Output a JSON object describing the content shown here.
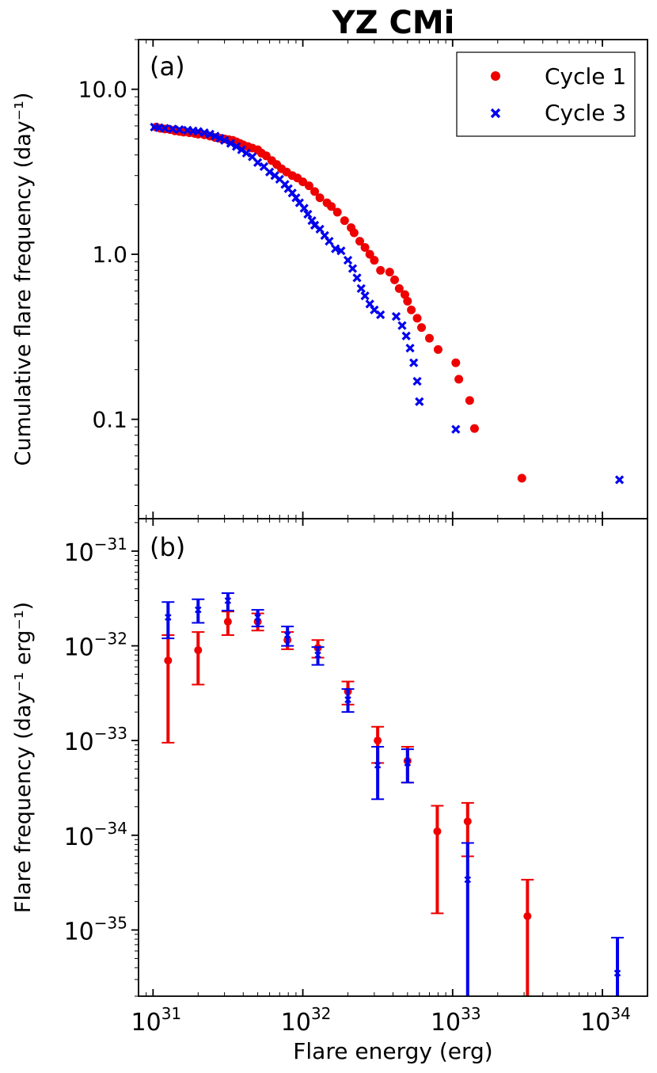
{
  "figure_title": "YZ CMi",
  "colors": {
    "cycle1": "#ee0000",
    "cycle3": "#0000ee",
    "axes": "#000000"
  },
  "chart_data": [
    {
      "panel_label": "(a)",
      "type": "scatter",
      "xscale": "log",
      "yscale": "log",
      "xlim": [
        8e+30,
        2e+34
      ],
      "ylim": [
        0.025,
        20
      ],
      "ytick_values": [
        0.1,
        1.0,
        10.0
      ],
      "ytick_labels": [
        "0.1",
        "1.0",
        "10.0"
      ],
      "ylabel": "Cumulative flare frequency (day⁻¹)",
      "legend": {
        "position": "top-right",
        "entries": [
          "Cycle 1",
          "Cycle 3"
        ]
      },
      "series": [
        {
          "name": "Cycle 1",
          "marker": "circle",
          "color": "#ee0000",
          "points": [
            [
              1.05e+31,
              5.9
            ],
            [
              1.12e+31,
              5.8
            ],
            [
              1.2e+31,
              5.75
            ],
            [
              1.3e+31,
              5.7
            ],
            [
              1.4e+31,
              5.6
            ],
            [
              1.5e+31,
              5.55
            ],
            [
              1.6e+31,
              5.5
            ],
            [
              1.75e+31,
              5.45
            ],
            [
              1.9e+31,
              5.4
            ],
            [
              2e+31,
              5.35
            ],
            [
              2.2e+31,
              5.3
            ],
            [
              2.4e+31,
              5.2
            ],
            [
              2.6e+31,
              5.1
            ],
            [
              2.8e+31,
              5.05
            ],
            [
              3e+31,
              5.0
            ],
            [
              3.2e+31,
              4.95
            ],
            [
              3.4e+31,
              4.9
            ],
            [
              3.6e+31,
              4.8
            ],
            [
              3.8e+31,
              4.7
            ],
            [
              4e+31,
              4.6
            ],
            [
              4.3e+31,
              4.5
            ],
            [
              4.6e+31,
              4.4
            ],
            [
              5e+31,
              4.3
            ],
            [
              5.3e+31,
              4.1
            ],
            [
              5.7e+31,
              3.95
            ],
            [
              6.2e+31,
              3.7
            ],
            [
              6.7e+31,
              3.5
            ],
            [
              7.2e+31,
              3.3
            ],
            [
              7.8e+31,
              3.15
            ],
            [
              8.5e+31,
              3.0
            ],
            [
              9.2e+31,
              2.9
            ],
            [
              1e+32,
              2.75
            ],
            [
              1.1e+32,
              2.6
            ],
            [
              1.2e+32,
              2.4
            ],
            [
              1.3e+32,
              2.2
            ],
            [
              1.45e+32,
              2.05
            ],
            [
              1.55e+32,
              1.95
            ],
            [
              1.7e+32,
              1.8
            ],
            [
              1.9e+32,
              1.6
            ],
            [
              2.1e+32,
              1.45
            ],
            [
              2.2e+32,
              1.35
            ],
            [
              2.4e+32,
              1.2
            ],
            [
              2.6e+32,
              1.1
            ],
            [
              2.8e+32,
              1.0
            ],
            [
              3e+32,
              0.92
            ],
            [
              3.3e+32,
              0.8
            ],
            [
              3.8e+32,
              0.78
            ],
            [
              4.1e+32,
              0.7
            ],
            [
              4.4e+32,
              0.62
            ],
            [
              4.8e+32,
              0.57
            ],
            [
              5e+32,
              0.52
            ],
            [
              5.3e+32,
              0.46
            ],
            [
              5.8e+32,
              0.41
            ],
            [
              6.2e+32,
              0.36
            ],
            [
              7e+32,
              0.31
            ],
            [
              8e+32,
              0.265
            ],
            [
              1.05e+33,
              0.22
            ],
            [
              1.1e+33,
              0.175
            ],
            [
              1.3e+33,
              0.13
            ],
            [
              1.4e+33,
              0.088
            ],
            [
              2.9e+33,
              0.044
            ]
          ]
        },
        {
          "name": "Cycle 3",
          "marker": "x",
          "color": "#0000ee",
          "points": [
            [
              1.02e+31,
              5.9
            ],
            [
              1.1e+31,
              5.85
            ],
            [
              1.2e+31,
              5.8
            ],
            [
              1.35e+31,
              5.75
            ],
            [
              1.5e+31,
              5.7
            ],
            [
              1.7e+31,
              5.65
            ],
            [
              1.85e+31,
              5.6
            ],
            [
              2e+31,
              5.55
            ],
            [
              2.2e+31,
              5.45
            ],
            [
              2.4e+31,
              5.35
            ],
            [
              2.6e+31,
              5.2
            ],
            [
              2.8e+31,
              5.05
            ],
            [
              3e+31,
              4.9
            ],
            [
              3.3e+31,
              4.7
            ],
            [
              3.6e+31,
              4.5
            ],
            [
              3.9e+31,
              4.3
            ],
            [
              4.2e+31,
              4.1
            ],
            [
              4.6e+31,
              3.9
            ],
            [
              5e+31,
              3.6
            ],
            [
              5.5e+31,
              3.4
            ],
            [
              6e+31,
              3.15
            ],
            [
              6.5e+31,
              3.0
            ],
            [
              7e+31,
              2.85
            ],
            [
              7.6e+31,
              2.65
            ],
            [
              8e+31,
              2.5
            ],
            [
              8.5e+31,
              2.35
            ],
            [
              9e+31,
              2.2
            ],
            [
              9.5e+31,
              2.05
            ],
            [
              1.02e+32,
              1.9
            ],
            [
              1.08e+32,
              1.75
            ],
            [
              1.15e+32,
              1.6
            ],
            [
              1.2e+32,
              1.5
            ],
            [
              1.3e+32,
              1.42
            ],
            [
              1.4e+32,
              1.3
            ],
            [
              1.5e+32,
              1.2
            ],
            [
              1.65e+32,
              1.08
            ],
            [
              1.8e+32,
              1.05
            ],
            [
              2e+32,
              0.92
            ],
            [
              2.15e+32,
              0.82
            ],
            [
              2.3e+32,
              0.72
            ],
            [
              2.45e+32,
              0.62
            ],
            [
              2.6e+32,
              0.56
            ],
            [
              2.8e+32,
              0.5
            ],
            [
              3e+32,
              0.46
            ],
            [
              3.3e+32,
              0.43
            ],
            [
              4.2e+32,
              0.42
            ],
            [
              4.6e+32,
              0.37
            ],
            [
              4.9e+32,
              0.32
            ],
            [
              5.2e+32,
              0.27
            ],
            [
              5.5e+32,
              0.22
            ],
            [
              5.8e+32,
              0.17
            ],
            [
              6e+32,
              0.128
            ],
            [
              1.05e+33,
              0.087
            ],
            [
              1.3e+34,
              0.043
            ]
          ]
        }
      ]
    },
    {
      "panel_label": "(b)",
      "type": "errorbar",
      "xscale": "log",
      "yscale": "log",
      "xlim": [
        8e+30,
        2e+34
      ],
      "ylim": [
        2e-36,
        2.2e-31
      ],
      "ytick_labels": [
        {
          "mant": "10",
          "exp": "−31"
        },
        {
          "mant": "10",
          "exp": "−32"
        },
        {
          "mant": "10",
          "exp": "−33"
        },
        {
          "mant": "10",
          "exp": "−34"
        },
        {
          "mant": "10",
          "exp": "−35"
        }
      ],
      "ytick_values": [
        1e-31,
        1e-32,
        1e-33,
        1e-34,
        1e-35
      ],
      "ylabel": "Flare frequency (day⁻¹ erg⁻¹)",
      "xlabel": "Flare energy (erg)",
      "xtick_values": [
        1e+31,
        1e+32,
        1e+33,
        1e+34
      ],
      "xtick_labels": [
        {
          "mant": "10",
          "exp": "31"
        },
        {
          "mant": "10",
          "exp": "32"
        },
        {
          "mant": "10",
          "exp": "33"
        },
        {
          "mant": "10",
          "exp": "34"
        }
      ],
      "series": [
        {
          "name": "Cycle 1",
          "marker": "circle",
          "color": "#ee0000",
          "points": [
            {
              "x": 1.26e+31,
              "y": 7e-33,
              "lo": 9.5e-34,
              "hi": 1.3e-32
            },
            {
              "x": 2e+31,
              "y": 9e-33,
              "lo": 3.9e-33,
              "hi": 1.4e-32
            },
            {
              "x": 3.16e+31,
              "y": 1.8e-32,
              "lo": 1.3e-32,
              "hi": 2.3e-32
            },
            {
              "x": 5e+31,
              "y": 1.8e-32,
              "lo": 1.45e-32,
              "hi": 2.2e-32
            },
            {
              "x": 7.9e+31,
              "y": 1.15e-32,
              "lo": 9.2e-33,
              "hi": 1.4e-32
            },
            {
              "x": 1.26e+32,
              "y": 9.5e-33,
              "lo": 7.5e-33,
              "hi": 1.15e-32
            },
            {
              "x": 2e+32,
              "y": 3.3e-33,
              "lo": 2.4e-33,
              "hi": 4.2e-33
            },
            {
              "x": 3.16e+32,
              "y": 1e-33,
              "lo": 5.8e-34,
              "hi": 1.4e-33
            },
            {
              "x": 5e+32,
              "y": 6.1e-34,
              "lo": 3.6e-34,
              "hi": 8.6e-34
            },
            {
              "x": 7.9e+32,
              "y": 1.1e-34,
              "lo": 1.5e-35,
              "hi": 2.05e-34
            },
            {
              "x": 1.26e+33,
              "y": 1.4e-34,
              "lo": 6e-35,
              "hi": 2.2e-34
            },
            {
              "x": 3.16e+33,
              "y": 1.4e-35,
              "lo": 2e-36,
              "hi": 3.4e-35
            }
          ]
        },
        {
          "name": "Cycle 3",
          "marker": "x",
          "color": "#0000ee",
          "points": [
            {
              "x": 1.26e+31,
              "y": 2e-32,
              "lo": 1.2e-32,
              "hi": 2.9e-32
            },
            {
              "x": 2e+31,
              "y": 2.4e-32,
              "lo": 1.75e-32,
              "hi": 3.1e-32
            },
            {
              "x": 3.16e+31,
              "y": 3e-32,
              "lo": 2.35e-32,
              "hi": 3.6e-32
            },
            {
              "x": 5e+31,
              "y": 2e-32,
              "lo": 1.6e-32,
              "hi": 2.4e-32
            },
            {
              "x": 7.9e+31,
              "y": 1.3e-32,
              "lo": 1e-32,
              "hi": 1.6e-32
            },
            {
              "x": 1.26e+32,
              "y": 8e-33,
              "lo": 6.3e-33,
              "hi": 9.7e-33
            },
            {
              "x": 2e+32,
              "y": 2.7e-33,
              "lo": 2e-33,
              "hi": 3.5e-33
            },
            {
              "x": 3.16e+32,
              "y": 5.5e-34,
              "lo": 2.4e-34,
              "hi": 8.6e-34
            },
            {
              "x": 5e+32,
              "y": 5.8e-34,
              "lo": 3.6e-34,
              "hi": 8.1e-34
            },
            {
              "x": 1.26e+33,
              "y": 3.4e-35,
              "lo": 2e-36,
              "hi": 8.3e-35
            },
            {
              "x": 1.26e+34,
              "y": 3.5e-36,
              "lo": 2e-36,
              "hi": 8.3e-36
            }
          ]
        }
      ]
    }
  ]
}
